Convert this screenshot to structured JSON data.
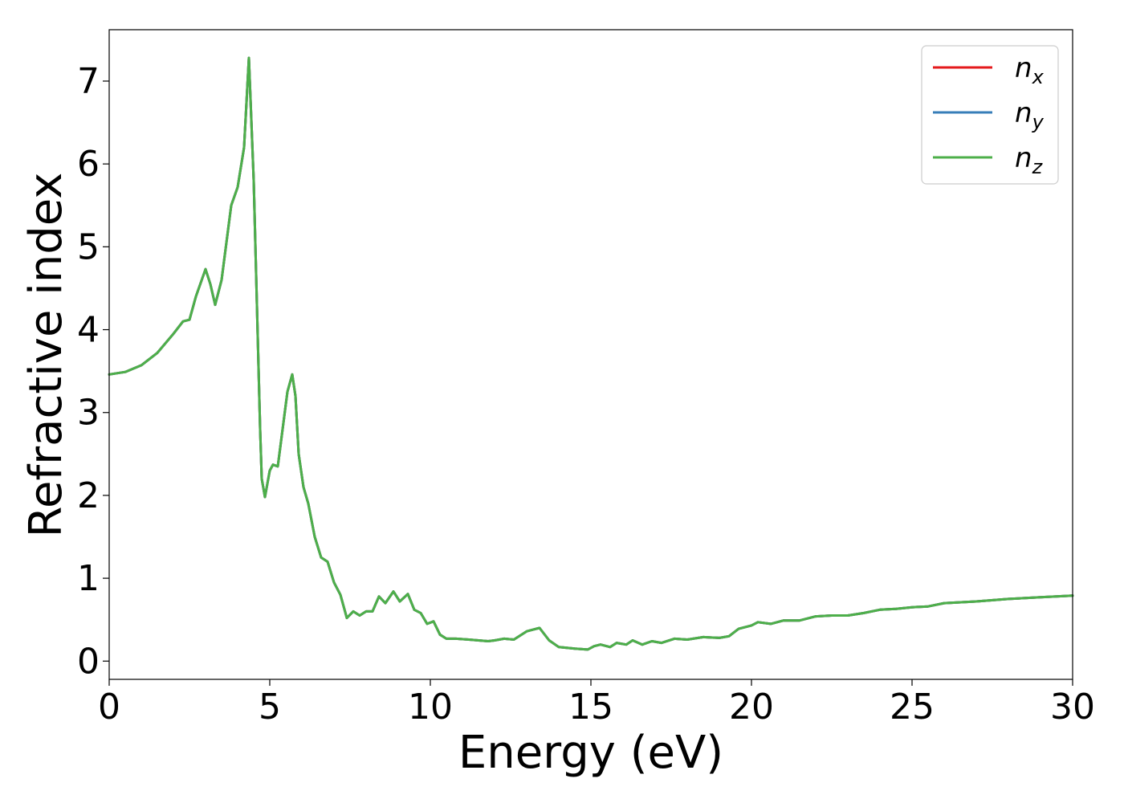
{
  "chart_data": {
    "type": "line",
    "title": "",
    "xlabel": "Energy (eV)",
    "ylabel": "Refractive index",
    "xlim": [
      0,
      30
    ],
    "ylim": [
      -0.22,
      7.62
    ],
    "xticks": [
      "0",
      "5",
      "10",
      "15",
      "20",
      "25",
      "30"
    ],
    "yticks": [
      "0",
      "1",
      "2",
      "3",
      "4",
      "5",
      "6",
      "7"
    ],
    "grid": false,
    "legend_position": "top-right",
    "legend": [
      {
        "base": "n",
        "sub": "x",
        "color": "#e41a1c"
      },
      {
        "base": "n",
        "sub": "y",
        "color": "#377eb8"
      },
      {
        "base": "n",
        "sub": "z",
        "color": "#4daf4a"
      }
    ],
    "curve": {
      "x": [
        0,
        0.5,
        1.0,
        1.5,
        2.0,
        2.3,
        2.5,
        2.7,
        3.0,
        3.15,
        3.3,
        3.5,
        3.8,
        4.0,
        4.2,
        4.35,
        4.5,
        4.6,
        4.7,
        4.75,
        4.85,
        5.0,
        5.1,
        5.25,
        5.4,
        5.55,
        5.7,
        5.8,
        5.9,
        6.05,
        6.2,
        6.4,
        6.6,
        6.8,
        7.0,
        7.2,
        7.4,
        7.6,
        7.8,
        8.0,
        8.2,
        8.4,
        8.6,
        8.85,
        9.05,
        9.3,
        9.5,
        9.7,
        9.9,
        10.1,
        10.3,
        10.5,
        10.8,
        11.2,
        11.5,
        11.8,
        12.0,
        12.3,
        12.6,
        13.0,
        13.2,
        13.4,
        13.7,
        14.0,
        14.5,
        14.9,
        15.1,
        15.3,
        15.6,
        15.8,
        16.1,
        16.3,
        16.6,
        16.9,
        17.2,
        17.6,
        18.0,
        18.5,
        19.0,
        19.3,
        19.6,
        20.0,
        20.2,
        20.6,
        21.0,
        21.5,
        22.0,
        22.5,
        23.0,
        23.5,
        24.0,
        24.5,
        25.0,
        25.5,
        26.0,
        27.0,
        28.0,
        29.0,
        30.0
      ],
      "y": [
        3.46,
        3.49,
        3.57,
        3.72,
        3.95,
        4.1,
        4.12,
        4.4,
        4.73,
        4.55,
        4.3,
        4.6,
        5.5,
        5.72,
        6.2,
        7.28,
        5.8,
        4.3,
        2.8,
        2.2,
        1.98,
        2.3,
        2.37,
        2.35,
        2.8,
        3.25,
        3.46,
        3.2,
        2.5,
        2.1,
        1.9,
        1.5,
        1.25,
        1.2,
        0.95,
        0.8,
        0.52,
        0.6,
        0.55,
        0.6,
        0.6,
        0.78,
        0.7,
        0.84,
        0.72,
        0.81,
        0.62,
        0.58,
        0.45,
        0.48,
        0.32,
        0.27,
        0.27,
        0.26,
        0.25,
        0.24,
        0.25,
        0.27,
        0.26,
        0.36,
        0.38,
        0.4,
        0.25,
        0.17,
        0.15,
        0.14,
        0.18,
        0.2,
        0.17,
        0.22,
        0.2,
        0.25,
        0.2,
        0.24,
        0.22,
        0.27,
        0.26,
        0.29,
        0.28,
        0.3,
        0.39,
        0.43,
        0.47,
        0.45,
        0.49,
        0.49,
        0.54,
        0.55,
        0.55,
        0.58,
        0.62,
        0.63,
        0.65,
        0.66,
        0.7,
        0.72,
        0.75,
        0.77,
        0.79
      ]
    }
  }
}
